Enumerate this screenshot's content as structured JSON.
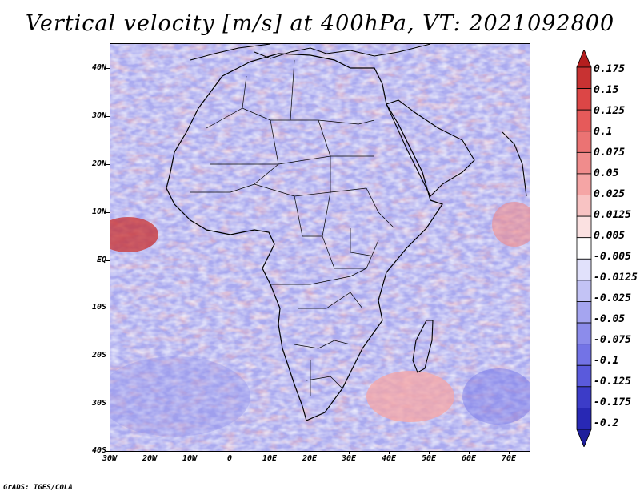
{
  "title": "Vertical velocity [m/s] at 400hPa, VT: 2021092800",
  "footer": "GrADS: IGES/COLA",
  "map": {
    "region": "Africa",
    "field": "Vertical velocity",
    "level": "400hPa",
    "lat_labels": [
      "40N",
      "30N",
      "20N",
      "10N",
      "EQ",
      "10S",
      "20S",
      "30S",
      "40S"
    ],
    "lon_labels": [
      "30W",
      "20W",
      "10W",
      "0",
      "10E",
      "20E",
      "30E",
      "40E",
      "50E",
      "60E",
      "70E"
    ],
    "lat_range": [
      -40,
      45
    ],
    "lon_range": [
      -30,
      75
    ]
  },
  "colorbar": {
    "labels": [
      "0.175",
      "0.15",
      "0.125",
      "0.1",
      "0.075",
      "0.05",
      "0.025",
      "0.0125",
      "0.005",
      "-0.005",
      "-0.0125",
      "-0.025",
      "-0.05",
      "-0.075",
      "-0.1",
      "-0.125",
      "-0.175",
      "-0.2"
    ],
    "colors": [
      "#b41e1e",
      "#c83232",
      "#dc4646",
      "#e65a5a",
      "#eb7373",
      "#f08c8c",
      "#f5a5a5",
      "#f8c3c3",
      "#fbe1e1",
      "#ffffff",
      "#e1e1fb",
      "#c3c3f5",
      "#a5a5f0",
      "#8c8ceb",
      "#7373e6",
      "#5a5adc",
      "#3c3cc8",
      "#2828b4",
      "#1e1e9b"
    ]
  }
}
